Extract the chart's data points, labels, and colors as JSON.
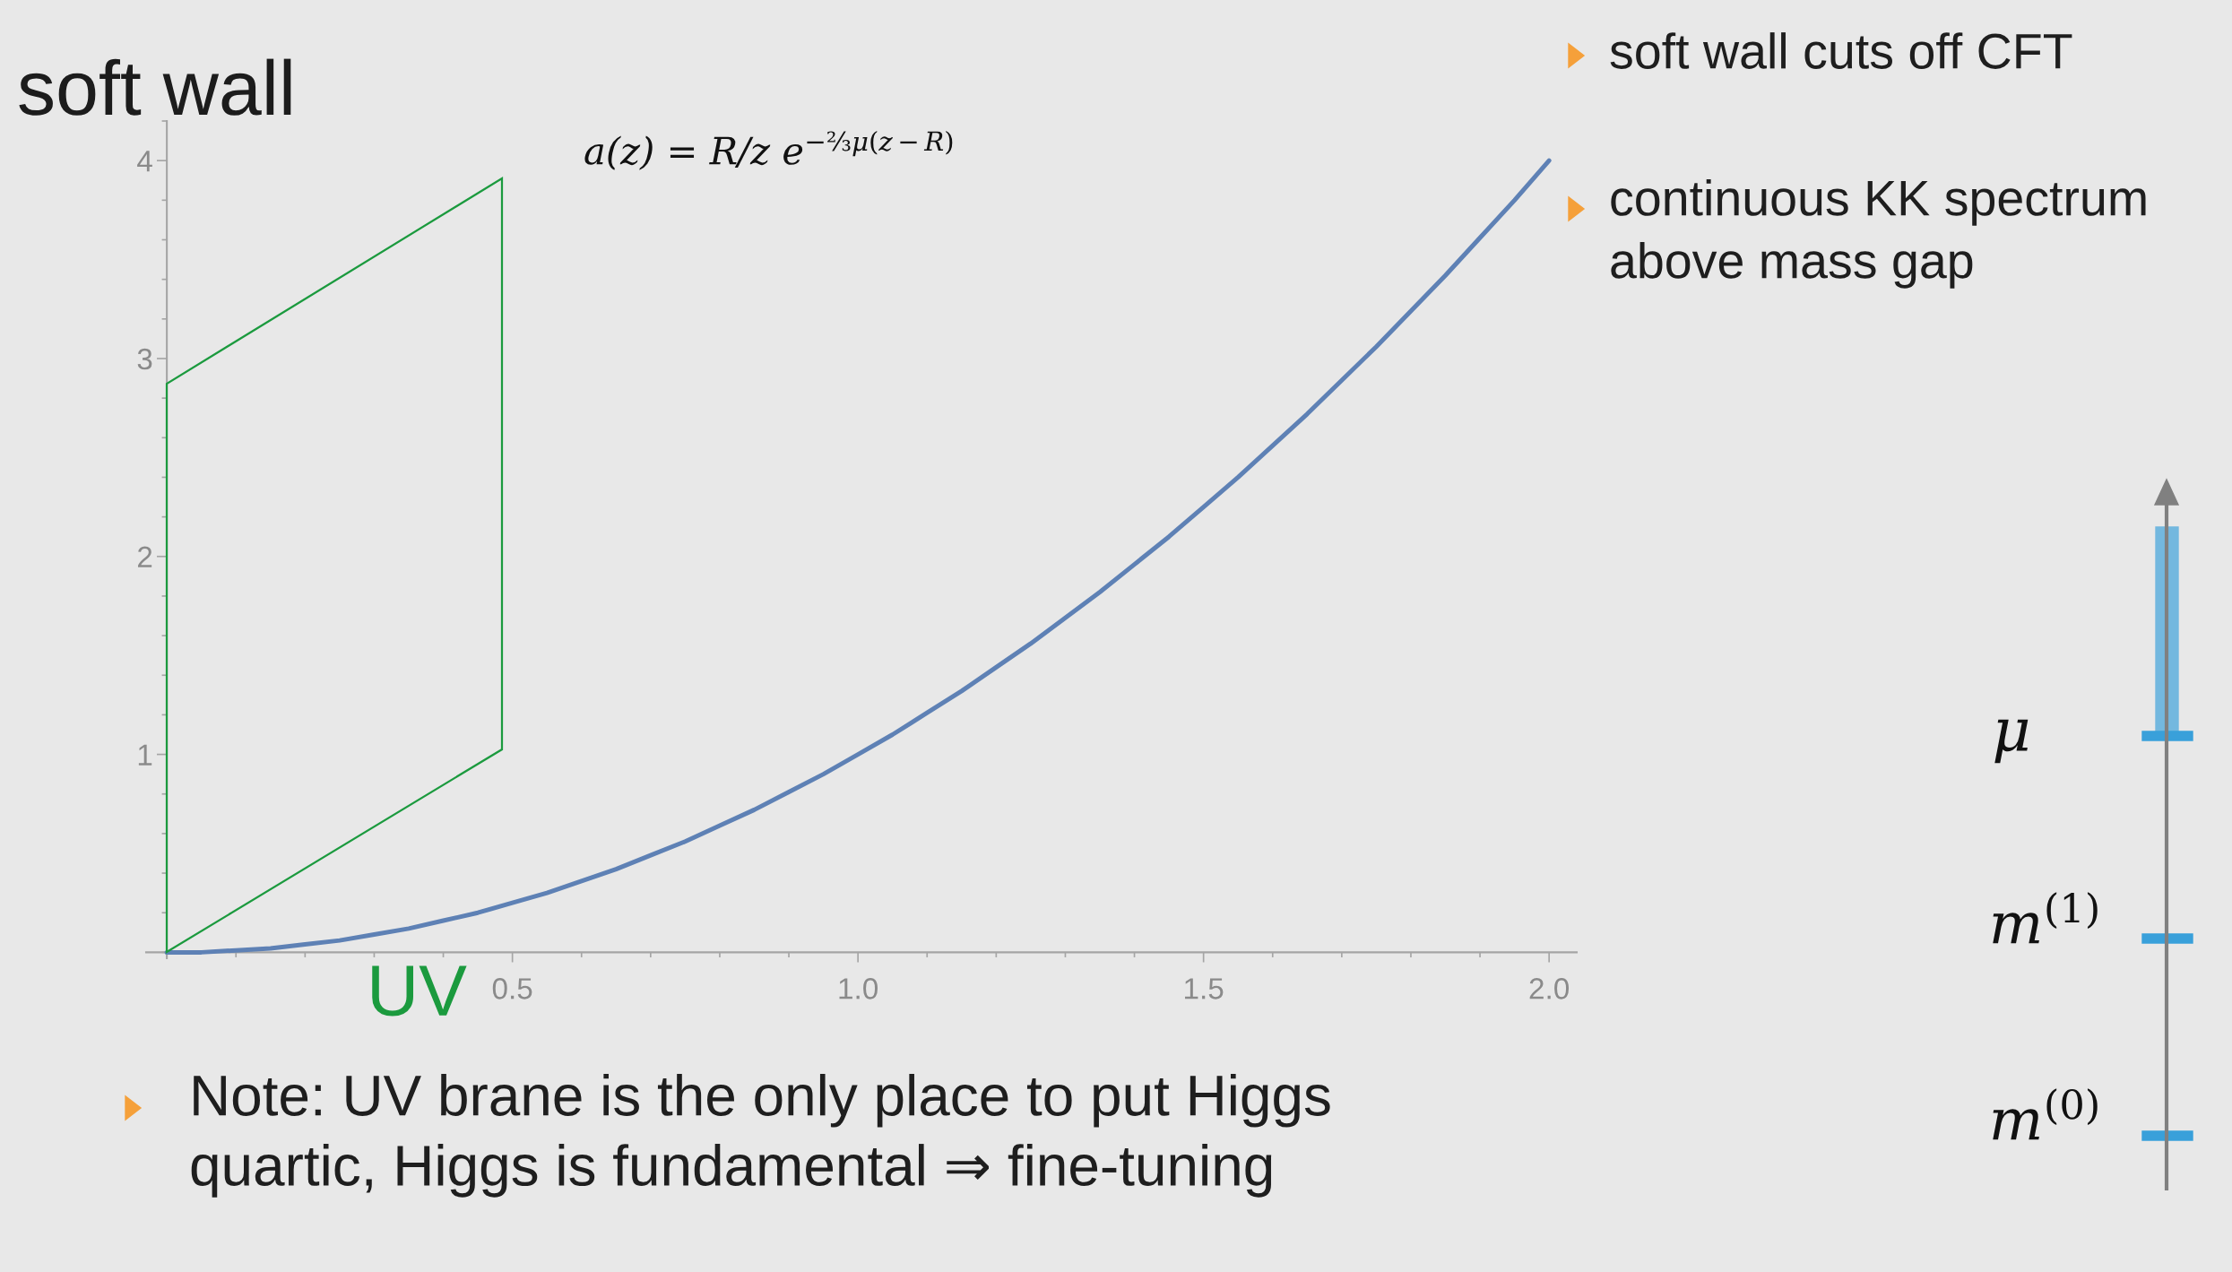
{
  "chart_data": {
    "type": "line",
    "title": "soft wall",
    "annotations": [
      "soft wall cuts off CFT",
      "continuous KK spectrum\nabove mass gap",
      "a(z) = R/z e$^{−⅔μ(z−R)}$",
      "UV",
      "μ",
      "m$^{(1)}$",
      "m$^{(0)}$",
      "Note: UV brane is the only place to put Higgs\nquartic, Higgs is fundamental ⇒ fine-tuning"
    ],
    "x": [
      0,
      0.05,
      0.1,
      0.15,
      0.2,
      0.25,
      0.3,
      0.35,
      0.4,
      0.45,
      0.5,
      0.55,
      0.6,
      0.65,
      0.7,
      0.75,
      0.8,
      0.85,
      0.9,
      0.95,
      1.0,
      1.05,
      1.1,
      1.15,
      1.2,
      1.25,
      1.3,
      1.35,
      1.4,
      1.45,
      1.5,
      1.55,
      1.6,
      1.65,
      1.7,
      1.75,
      1.8,
      1.85,
      1.9,
      1.95,
      2.0
    ],
    "values": [
      0,
      0,
      0.01,
      0.02,
      0.04,
      0.06,
      0.09,
      0.12,
      0.16,
      0.2,
      0.25,
      0.3,
      0.36,
      0.42,
      0.49,
      0.56,
      0.64,
      0.72,
      0.81,
      0.9,
      1.0,
      1.1,
      1.21,
      1.32,
      1.44,
      1.56,
      1.69,
      1.82,
      1.96,
      2.1,
      2.25,
      2.4,
      2.56,
      2.72,
      2.89,
      3.06,
      3.24,
      3.42,
      3.61,
      3.8,
      4.0
    ],
    "color": "#5e81b5",
    "line_style": "solid",
    "xlim": [
      -0.03,
      2.04
    ],
    "ylim": [
      -0.03,
      4.2
    ],
    "xticks": [
      0.5,
      {
        "value": 1,
        "label": "1.0"
      },
      1.5,
      {
        "value": 2,
        "label": "2.0"
      }
    ],
    "yticks": [
      1,
      2,
      3,
      4
    ]
  }
}
